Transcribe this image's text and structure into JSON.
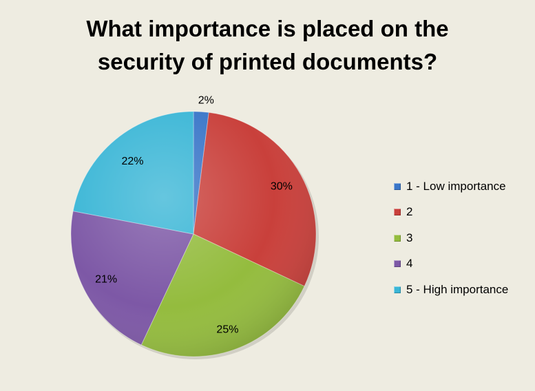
{
  "chart_data": {
    "type": "pie",
    "title_lines": [
      "What importance is placed on the",
      "security of printed documents?"
    ],
    "categories": [
      "1 - Low importance",
      "2",
      "3",
      "4",
      "5 - High importance"
    ],
    "values": [
      2,
      30,
      25,
      21,
      22
    ],
    "data_labels": [
      "2%",
      "30%",
      "25%",
      "21%",
      "22%"
    ],
    "colors": [
      "#3a76c8",
      "#c9403b",
      "#94bc3e",
      "#7d58a6",
      "#3ab6d6"
    ],
    "legend_position": "right",
    "start_angle": "12 o'clock",
    "direction": "clockwise"
  }
}
